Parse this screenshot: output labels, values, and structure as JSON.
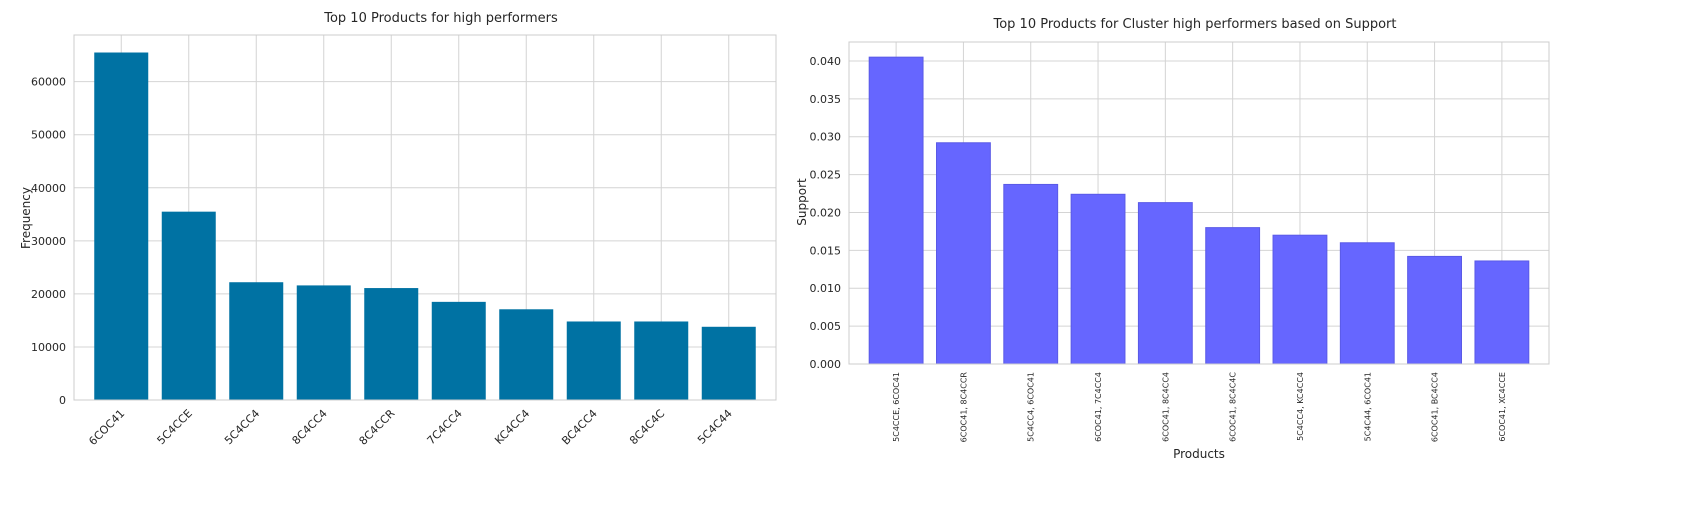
{
  "colors": {
    "left_bar": "#0072a3",
    "right_bar": "#6666ff",
    "right_bar_edge": "#5a5ae6"
  },
  "chart_data": [
    {
      "type": "bar",
      "title": "Top 10 Products for high performers",
      "xlabel": "",
      "ylabel": "Frequency",
      "categories": [
        "6COC41",
        "5C4CCE",
        "5C4CC4",
        "8C4CC4",
        "8C4CCR",
        "7C4CC4",
        "KC4CC4",
        "BC4CC4",
        "8C4C4C",
        "5C4C44"
      ],
      "values": [
        65500,
        35500,
        22200,
        21600,
        21100,
        18500,
        17100,
        14800,
        14800,
        13800
      ],
      "ylim": [
        0,
        68800
      ],
      "yticks": [
        0,
        10000,
        20000,
        30000,
        40000,
        50000,
        60000
      ],
      "grid": true
    },
    {
      "type": "bar",
      "title": "Top 10 Products for Cluster high performers based on Support",
      "xlabel": "Products",
      "ylabel": "Support",
      "categories": [
        "5C4CCE, 6COC41",
        "6COC41, 8C4CCR",
        "5C4CC4, 6COC41",
        "6COC41, 7C4CC4",
        "6COC41, 8C4CC4",
        "6COC41, 8C4C4C",
        "5C4CC4, KC4CC4",
        "5C4C44, 6COC41",
        "6COC41, BC4CC4",
        "6COC41, XC4CCE"
      ],
      "values": [
        0.0405,
        0.0292,
        0.0237,
        0.0224,
        0.0213,
        0.018,
        0.017,
        0.016,
        0.0142,
        0.0136
      ],
      "ylim": [
        0,
        0.0425
      ],
      "yticks": [
        "0.000",
        "0.005",
        "0.010",
        "0.015",
        "0.020",
        "0.025",
        "0.030",
        "0.035",
        "0.040"
      ],
      "grid": true
    }
  ]
}
